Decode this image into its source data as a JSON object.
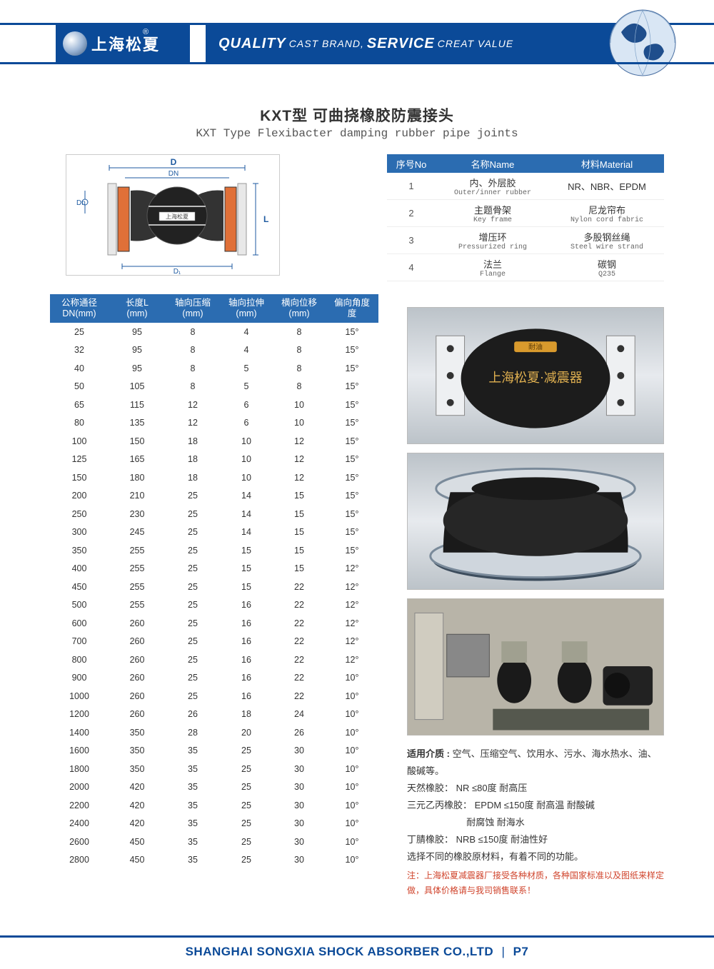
{
  "colors": {
    "brand_blue": "#0b4a98",
    "table_head_blue": "#2b6cb1",
    "note_red": "#d0442c",
    "background": "#ffffff"
  },
  "header": {
    "logo_text": "上海松夏",
    "reg": "®",
    "slogan_q": "QUALITY",
    "slogan_cb": " CAST BRAND,",
    "slogan_s": "SERVICE",
    "slogan_cv": " CREAT VALUE"
  },
  "title_cn": "KXT型  可曲挠橡胶防震接头",
  "title_en": "KXT Type Flexibacter damping rubber pipe joints",
  "diagram": {
    "labels": [
      "D",
      "DN",
      "Dn",
      "D₁",
      "L",
      "上海松夏"
    ]
  },
  "material_table": {
    "columns": [
      "序号No",
      "名称Name",
      "材料Material"
    ],
    "rows": [
      {
        "no": "1",
        "name_cn": "内、外层胶",
        "name_en": "Outer/inner rubber",
        "mat_cn": "NR、NBR、EPDM",
        "mat_en": ""
      },
      {
        "no": "2",
        "name_cn": "主题骨架",
        "name_en": "Key frame",
        "mat_cn": "尼龙帘布",
        "mat_en": "Nylon cord fabric"
      },
      {
        "no": "3",
        "name_cn": "增压环",
        "name_en": "Pressurized ring",
        "mat_cn": "多股钢丝绳",
        "mat_en": "Steel wire strand"
      },
      {
        "no": "4",
        "name_cn": "法兰",
        "name_en": "Flange",
        "mat_cn": "碳钢",
        "mat_en": "Q235"
      }
    ]
  },
  "spec_table": {
    "columns": [
      {
        "l1": "公称通径",
        "l2": "DN(mm)"
      },
      {
        "l1": "长度L",
        "l2": "(mm)"
      },
      {
        "l1": "轴向压缩",
        "l2": "(mm)"
      },
      {
        "l1": "轴向拉伸",
        "l2": "(mm)"
      },
      {
        "l1": "横向位移",
        "l2": "(mm)"
      },
      {
        "l1": "偏向角度",
        "l2": "度"
      }
    ],
    "rows": [
      [
        "25",
        "95",
        "8",
        "4",
        "8",
        "15°"
      ],
      [
        "32",
        "95",
        "8",
        "4",
        "8",
        "15°"
      ],
      [
        "40",
        "95",
        "8",
        "5",
        "8",
        "15°"
      ],
      [
        "50",
        "105",
        "8",
        "5",
        "8",
        "15°"
      ],
      [
        "65",
        "115",
        "12",
        "6",
        "10",
        "15°"
      ],
      [
        "80",
        "135",
        "12",
        "6",
        "10",
        "15°"
      ],
      [
        "100",
        "150",
        "18",
        "10",
        "12",
        "15°"
      ],
      [
        "125",
        "165",
        "18",
        "10",
        "12",
        "15°"
      ],
      [
        "150",
        "180",
        "18",
        "10",
        "12",
        "15°"
      ],
      [
        "200",
        "210",
        "25",
        "14",
        "15",
        "15°"
      ],
      [
        "250",
        "230",
        "25",
        "14",
        "15",
        "15°"
      ],
      [
        "300",
        "245",
        "25",
        "14",
        "15",
        "15°"
      ],
      [
        "350",
        "255",
        "25",
        "15",
        "15",
        "15°"
      ],
      [
        "400",
        "255",
        "25",
        "15",
        "15",
        "12°"
      ],
      [
        "450",
        "255",
        "25",
        "15",
        "22",
        "12°"
      ],
      [
        "500",
        "255",
        "25",
        "16",
        "22",
        "12°"
      ],
      [
        "600",
        "260",
        "25",
        "16",
        "22",
        "12°"
      ],
      [
        "700",
        "260",
        "25",
        "16",
        "22",
        "12°"
      ],
      [
        "800",
        "260",
        "25",
        "16",
        "22",
        "12°"
      ],
      [
        "900",
        "260",
        "25",
        "16",
        "22",
        "10°"
      ],
      [
        "1000",
        "260",
        "25",
        "16",
        "22",
        "10°"
      ],
      [
        "1200",
        "260",
        "26",
        "18",
        "24",
        "10°"
      ],
      [
        "1400",
        "350",
        "28",
        "20",
        "26",
        "10°"
      ],
      [
        "1600",
        "350",
        "35",
        "25",
        "30",
        "10°"
      ],
      [
        "1800",
        "350",
        "35",
        "25",
        "30",
        "10°"
      ],
      [
        "2000",
        "420",
        "35",
        "25",
        "30",
        "10°"
      ],
      [
        "2200",
        "420",
        "35",
        "25",
        "30",
        "10°"
      ],
      [
        "2400",
        "420",
        "35",
        "25",
        "30",
        "10°"
      ],
      [
        "2600",
        "450",
        "35",
        "25",
        "30",
        "10°"
      ],
      [
        "2800",
        "450",
        "35",
        "25",
        "30",
        "10°"
      ]
    ]
  },
  "notes": {
    "media_label": "适用介质 : ",
    "media_text": "空气、压缩空气、饮用水、污水、海水热水、油、酸碱等。",
    "l1": "天然橡胶：  NR  ≤80度  耐高压",
    "l2": "三元乙丙橡胶：  EPDM  ≤150度 耐高温 耐酸碱",
    "l2b": "耐腐蚀 耐海水",
    "l3": "丁腈橡胶：  NRB  ≤150度 耐油性好",
    "l4": "选择不同的橡胶原材料，有着不同的功能。",
    "foot": "注：上海松夏减震器厂接受各种材质，各种国家标准以及图纸来样定做，具体价格请与我司销售联系！"
  },
  "footer": {
    "company": "SHANGHAI SONGXIA SHOCK ABSORBER CO.,LTD",
    "page": "P7"
  }
}
